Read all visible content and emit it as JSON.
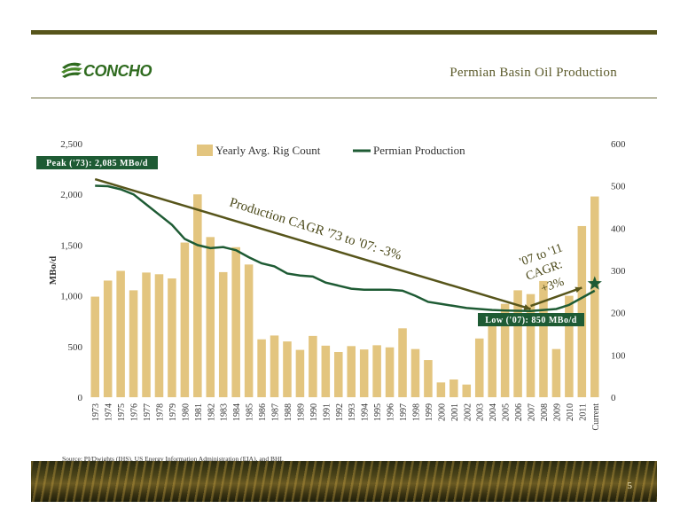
{
  "header": {
    "logo_text": "CONCHO",
    "title": "Permian Basin Oil Production"
  },
  "colors": {
    "accent": "#57551b",
    "bar": "#e3c57f",
    "line": "#1e5b34",
    "star": "#1e5b34",
    "trend": "#57551b",
    "callout_bg": "#1e5b34"
  },
  "chart_data": {
    "type": "bar",
    "categories": [
      "1973",
      "1974",
      "1975",
      "1976",
      "1977",
      "1978",
      "1979",
      "1980",
      "1981",
      "1982",
      "1983",
      "1984",
      "1985",
      "1986",
      "1987",
      "1988",
      "1989",
      "1990",
      "1991",
      "1992",
      "1993",
      "1994",
      "1995",
      "1996",
      "1997",
      "1998",
      "1999",
      "2000",
      "2001",
      "2002",
      "2003",
      "2004",
      "2005",
      "2006",
      "2007",
      "2008",
      "2009",
      "2010",
      "2011",
      "Current"
    ],
    "series": [
      {
        "name": "Yearly Avg. Rig Count",
        "type": "bar",
        "axis": "right",
        "values": [
          238,
          276,
          299,
          253,
          295,
          291,
          281,
          366,
          480,
          379,
          296,
          355,
          314,
          137,
          146,
          132,
          112,
          145,
          122,
          107,
          121,
          113,
          123,
          118,
          163,
          114,
          88,
          35,
          42,
          30,
          139,
          172,
          221,
          253,
          244,
          275,
          114,
          240,
          405,
          475
        ]
      },
      {
        "name": "Permian Production",
        "type": "line",
        "axis": "left",
        "values": [
          2085,
          2080,
          2050,
          2000,
          1900,
          1800,
          1700,
          1560,
          1500,
          1470,
          1480,
          1450,
          1380,
          1320,
          1290,
          1220,
          1200,
          1190,
          1130,
          1100,
          1070,
          1060,
          1060,
          1060,
          1050,
          1000,
          940,
          920,
          900,
          880,
          870,
          860,
          855,
          852,
          850,
          860,
          870,
          910,
          980,
          1050
        ]
      }
    ],
    "ylim_left": [
      0,
      2500
    ],
    "ylim_right": [
      0,
      600
    ],
    "left_ticks": [
      "0",
      "500",
      "1,000",
      "1,500",
      "2,000",
      "2,500"
    ],
    "right_ticks": [
      "0",
      "100",
      "200",
      "300",
      "400",
      "500",
      "600"
    ],
    "ylabel": "MBo/d",
    "legend": {
      "position": "top-center",
      "items": [
        "Yearly Avg. Rig Count",
        "Permian Production"
      ]
    },
    "annotations": {
      "peak": "Peak ('73): 2,085 MBo/d",
      "low": "Low ('07): 850 MBo/d",
      "cagr_main": "Production CAGR '73 to '07: -3%",
      "cagr_recent_1": "'07 to '11",
      "cagr_recent_2": "CAGR:",
      "cagr_recent_3": "+3%"
    },
    "trend_lines": [
      {
        "from": [
          "1973",
          2150
        ],
        "to": [
          "2007",
          870
        ]
      },
      {
        "from": [
          "2007",
          900
        ],
        "to": [
          "2011",
          1080
        ]
      }
    ],
    "star_point": [
      "Current",
      1120
    ]
  },
  "footer": {
    "source": "Source: PI/Dwights (IHS), US Energy Information Administration (EIA), and BHI.",
    "page_number": "5"
  }
}
